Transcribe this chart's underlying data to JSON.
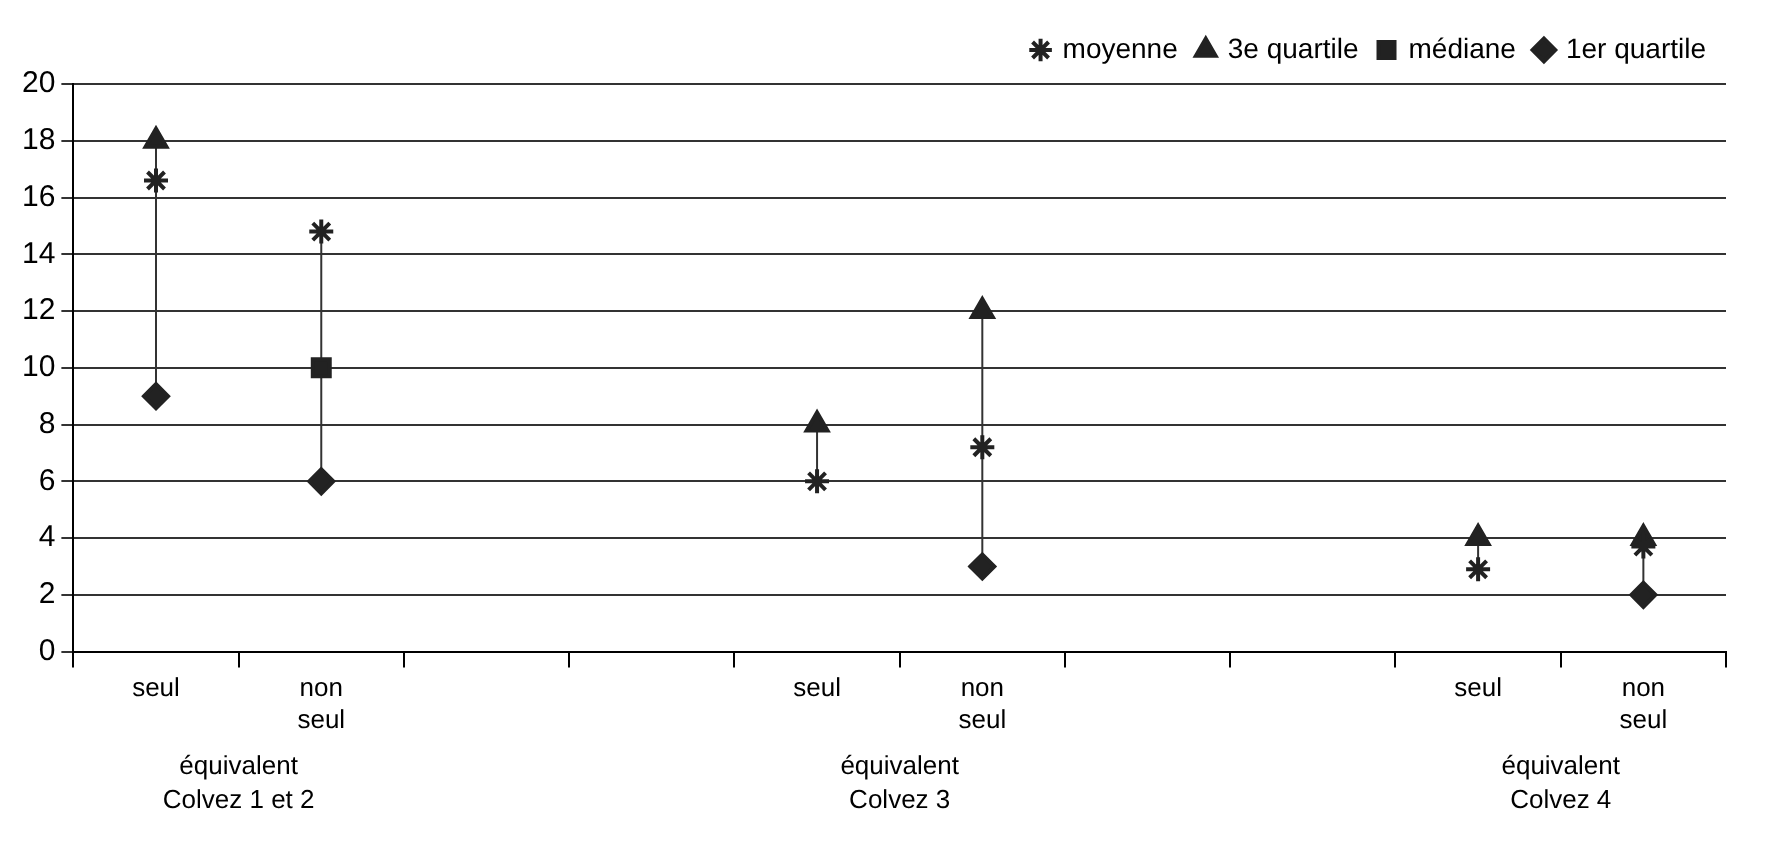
{
  "chart_data": {
    "type": "scatter",
    "categories": [
      "seul",
      "non seul",
      null,
      null,
      "seul",
      "non seul",
      null,
      null,
      "seul",
      "non seul"
    ],
    "series": [
      {
        "name": "1er quartile",
        "color": "#222222",
        "marker": "diamond",
        "values": [
          9,
          6,
          null,
          null,
          null,
          3,
          null,
          null,
          null,
          2
        ]
      },
      {
        "name": "médiane",
        "color": "#222222",
        "marker": "square",
        "values": [
          null,
          10,
          null,
          null,
          null,
          null,
          null,
          null,
          null,
          null
        ]
      },
      {
        "name": "3e quartile",
        "color": "#222222",
        "marker": "triangle",
        "values": [
          18,
          null,
          null,
          null,
          8,
          12,
          null,
          null,
          4,
          4
        ]
      },
      {
        "name": "moyenne",
        "color": "#222222",
        "marker": "cross",
        "values": [
          16.6,
          14.8,
          null,
          null,
          6,
          7.2,
          null,
          null,
          2.9,
          3.7
        ]
      }
    ],
    "annotations": [
      "équivalent Colvez 1 et 2",
      "équivalent Colvez 3",
      "équivalent Colvez 4"
    ],
    "ylim": [
      0,
      20
    ],
    "yticks": [
      0,
      2,
      4,
      6,
      8,
      10,
      12,
      14,
      16,
      18,
      20
    ],
    "grid": "y",
    "legend": "top right"
  }
}
